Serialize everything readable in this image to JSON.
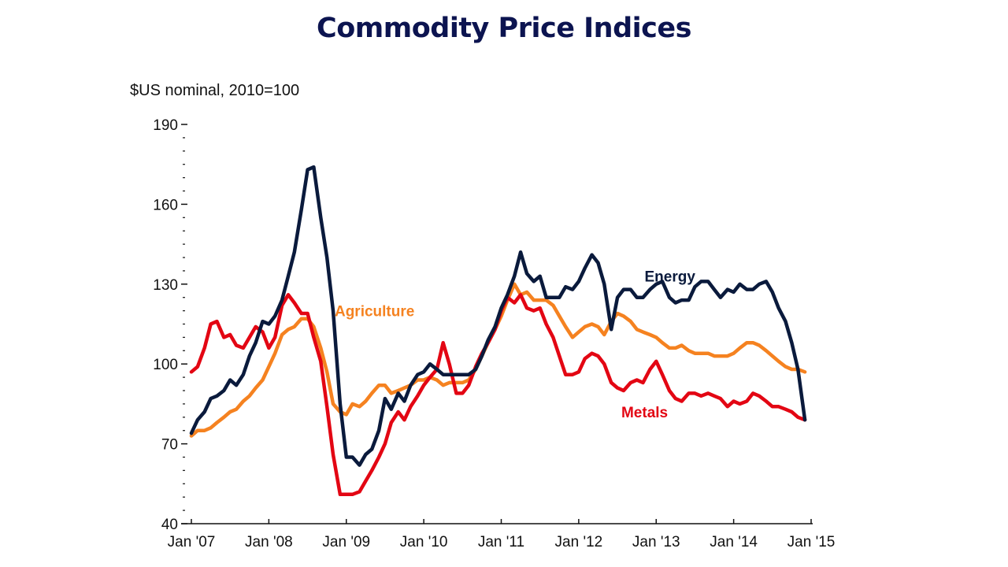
{
  "page": {
    "title": "Commodity Price Indices"
  },
  "chart_data": {
    "type": "line",
    "title": "Commodity Price Indices",
    "ylabel": "$US nominal, 2010=100",
    "xlabel": "",
    "ylim": [
      40,
      190
    ],
    "yticks": [
      40,
      70,
      100,
      130,
      160,
      190
    ],
    "ytick_labels": [
      "40",
      "70",
      "100",
      "130",
      "160",
      "190"
    ],
    "xlim": [
      2007.0,
      2015.0
    ],
    "xticks": [
      2007,
      2008,
      2009,
      2010,
      2011,
      2012,
      2013,
      2014,
      2015
    ],
    "xtick_labels": [
      "Jan '07",
      "Jan '08",
      "Jan '09",
      "Jan '10",
      "Jan '11",
      "Jan '12",
      "Jan '13",
      "Jan '14",
      "Jan '15"
    ],
    "grid": false,
    "legend": "inline labels",
    "series": [
      {
        "name": "Energy",
        "color": "#0a1a3c",
        "label_position": {
          "x": 2012.85,
          "y": 131
        },
        "x": [
          2007.0,
          2007.08,
          2007.17,
          2007.25,
          2007.33,
          2007.42,
          2007.5,
          2007.58,
          2007.67,
          2007.75,
          2007.83,
          2007.92,
          2008.0,
          2008.08,
          2008.17,
          2008.25,
          2008.33,
          2008.42,
          2008.5,
          2008.58,
          2008.67,
          2008.75,
          2008.83,
          2008.92,
          2009.0,
          2009.08,
          2009.17,
          2009.25,
          2009.33,
          2009.42,
          2009.5,
          2009.58,
          2009.67,
          2009.75,
          2009.83,
          2009.92,
          2010.0,
          2010.08,
          2010.17,
          2010.25,
          2010.33,
          2010.42,
          2010.5,
          2010.58,
          2010.67,
          2010.75,
          2010.83,
          2010.92,
          2011.0,
          2011.08,
          2011.17,
          2011.25,
          2011.33,
          2011.42,
          2011.5,
          2011.58,
          2011.67,
          2011.75,
          2011.83,
          2011.92,
          2012.0,
          2012.08,
          2012.17,
          2012.25,
          2012.33,
          2012.42,
          2012.5,
          2012.58,
          2012.67,
          2012.75,
          2012.83,
          2012.92,
          2013.0,
          2013.08,
          2013.17,
          2013.25,
          2013.33,
          2013.42,
          2013.5,
          2013.58,
          2013.67,
          2013.75,
          2013.83,
          2013.92,
          2014.0,
          2014.08,
          2014.17,
          2014.25,
          2014.33,
          2014.42,
          2014.5,
          2014.58,
          2014.67,
          2014.75,
          2014.83,
          2014.92
        ],
        "values": [
          74,
          79,
          82,
          87,
          88,
          90,
          94,
          92,
          96,
          103,
          108,
          116,
          115,
          118,
          124,
          133,
          142,
          158,
          173,
          174,
          155,
          140,
          120,
          85,
          65,
          65,
          62,
          66,
          68,
          75,
          87,
          83,
          89,
          86,
          92,
          96,
          97,
          100,
          98,
          96,
          96,
          96,
          96,
          96,
          98,
          103,
          109,
          114,
          121,
          126,
          133,
          142,
          134,
          131,
          133,
          125,
          125,
          125,
          129,
          128,
          131,
          136,
          141,
          138,
          130,
          113,
          125,
          128,
          128,
          125,
          125,
          128,
          130,
          131,
          125,
          123,
          124,
          124,
          129,
          131,
          131,
          128,
          125,
          128,
          127,
          130,
          128,
          128,
          130,
          131,
          127,
          121,
          116,
          108,
          98,
          79
        ]
      },
      {
        "name": "Agriculture",
        "color": "#f58220",
        "label_position": {
          "x": 2008.85,
          "y": 118
        },
        "x": [
          2007.0,
          2007.08,
          2007.17,
          2007.25,
          2007.33,
          2007.42,
          2007.5,
          2007.58,
          2007.67,
          2007.75,
          2007.83,
          2007.92,
          2008.0,
          2008.08,
          2008.17,
          2008.25,
          2008.33,
          2008.42,
          2008.5,
          2008.58,
          2008.67,
          2008.75,
          2008.83,
          2008.92,
          2009.0,
          2009.08,
          2009.17,
          2009.25,
          2009.33,
          2009.42,
          2009.5,
          2009.58,
          2009.67,
          2009.75,
          2009.83,
          2009.92,
          2010.0,
          2010.08,
          2010.17,
          2010.25,
          2010.33,
          2010.42,
          2010.5,
          2010.58,
          2010.67,
          2010.75,
          2010.83,
          2010.92,
          2011.0,
          2011.08,
          2011.17,
          2011.25,
          2011.33,
          2011.42,
          2011.5,
          2011.58,
          2011.67,
          2011.75,
          2011.83,
          2011.92,
          2012.0,
          2012.08,
          2012.17,
          2012.25,
          2012.33,
          2012.42,
          2012.5,
          2012.58,
          2012.67,
          2012.75,
          2012.83,
          2012.92,
          2013.0,
          2013.08,
          2013.17,
          2013.25,
          2013.33,
          2013.42,
          2013.5,
          2013.58,
          2013.67,
          2013.75,
          2013.83,
          2013.92,
          2014.0,
          2014.08,
          2014.17,
          2014.25,
          2014.33,
          2014.42,
          2014.5,
          2014.58,
          2014.67,
          2014.75,
          2014.83,
          2014.92
        ],
        "values": [
          73,
          75,
          75,
          76,
          78,
          80,
          82,
          83,
          86,
          88,
          91,
          94,
          99,
          104,
          111,
          113,
          114,
          117,
          117,
          114,
          106,
          97,
          85,
          82,
          81,
          85,
          84,
          86,
          89,
          92,
          92,
          89,
          90,
          91,
          92,
          94,
          94,
          95,
          94,
          92,
          93,
          93,
          93,
          94,
          98,
          103,
          108,
          113,
          118,
          124,
          130,
          126,
          127,
          124,
          124,
          124,
          122,
          118,
          114,
          110,
          112,
          114,
          115,
          114,
          111,
          116,
          119,
          118,
          116,
          113,
          112,
          111,
          110,
          108,
          106,
          106,
          107,
          105,
          104,
          104,
          104,
          103,
          103,
          103,
          104,
          106,
          108,
          108,
          107,
          105,
          103,
          101,
          99,
          98,
          98,
          97
        ]
      },
      {
        "name": "Metals",
        "color": "#e30613",
        "label_position": {
          "x": 2012.55,
          "y": 80
        },
        "x": [
          2007.0,
          2007.08,
          2007.17,
          2007.25,
          2007.33,
          2007.42,
          2007.5,
          2007.58,
          2007.67,
          2007.75,
          2007.83,
          2007.92,
          2008.0,
          2008.08,
          2008.17,
          2008.25,
          2008.33,
          2008.42,
          2008.5,
          2008.58,
          2008.67,
          2008.75,
          2008.83,
          2008.92,
          2009.0,
          2009.08,
          2009.17,
          2009.25,
          2009.33,
          2009.42,
          2009.5,
          2009.58,
          2009.67,
          2009.75,
          2009.83,
          2009.92,
          2010.0,
          2010.08,
          2010.17,
          2010.25,
          2010.33,
          2010.42,
          2010.5,
          2010.58,
          2010.67,
          2010.75,
          2010.83,
          2010.92,
          2011.0,
          2011.08,
          2011.17,
          2011.25,
          2011.33,
          2011.42,
          2011.5,
          2011.58,
          2011.67,
          2011.75,
          2011.83,
          2011.92,
          2012.0,
          2012.08,
          2012.17,
          2012.25,
          2012.33,
          2012.42,
          2012.5,
          2012.58,
          2012.67,
          2012.75,
          2012.83,
          2012.92,
          2013.0,
          2013.08,
          2013.17,
          2013.25,
          2013.33,
          2013.42,
          2013.5,
          2013.58,
          2013.67,
          2013.75,
          2013.83,
          2013.92,
          2014.0,
          2014.08,
          2014.17,
          2014.25,
          2014.33,
          2014.42,
          2014.5,
          2014.58,
          2014.67,
          2014.75,
          2014.83,
          2014.92
        ],
        "values": [
          97,
          99,
          106,
          115,
          116,
          110,
          111,
          107,
          106,
          110,
          114,
          112,
          106,
          110,
          122,
          126,
          123,
          119,
          119,
          110,
          101,
          84,
          66,
          51,
          51,
          51,
          52,
          56,
          60,
          65,
          70,
          78,
          82,
          79,
          84,
          88,
          92,
          95,
          98,
          108,
          100,
          89,
          89,
          92,
          99,
          104,
          108,
          113,
          120,
          125,
          123,
          126,
          121,
          120,
          121,
          115,
          110,
          103,
          96,
          96,
          97,
          102,
          104,
          103,
          100,
          93,
          91,
          90,
          93,
          94,
          93,
          98,
          101,
          96,
          90,
          87,
          86,
          89,
          89,
          88,
          89,
          88,
          87,
          84,
          86,
          85,
          86,
          89,
          88,
          86,
          84,
          84,
          83,
          82,
          80,
          79
        ]
      }
    ]
  }
}
